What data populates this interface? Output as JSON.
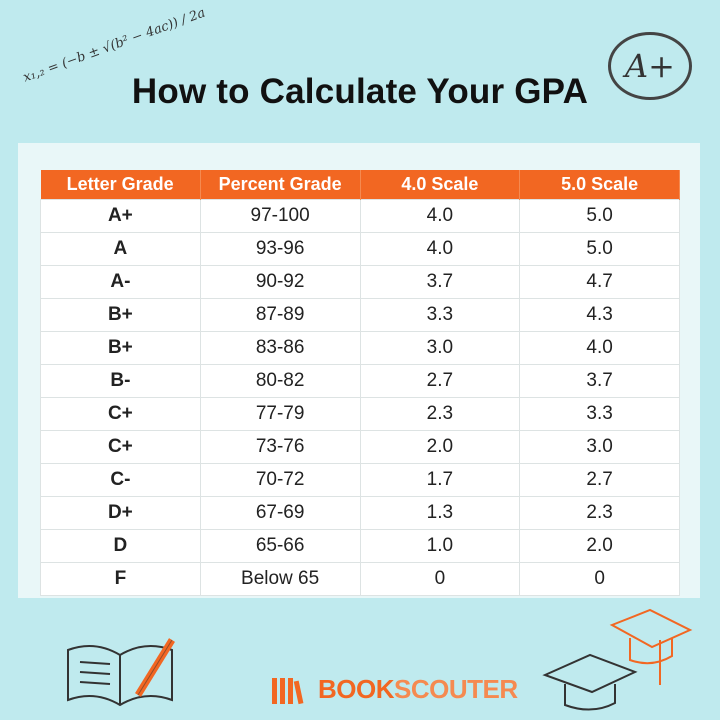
{
  "title": "How to Calculate Your GPA",
  "formula": "x₁,₂ = (−b ± √(b² − 4ac)) / 2a",
  "badge": "A+",
  "table": {
    "header": [
      "Letter Grade",
      "Percent Grade",
      "4.0 Scale",
      "5.0 Scale"
    ],
    "rows": [
      [
        "A+",
        "97-100",
        "4.0",
        "5.0"
      ],
      [
        "A",
        "93-96",
        "4.0",
        "5.0"
      ],
      [
        "A-",
        "90-92",
        "3.7",
        "4.7"
      ],
      [
        "B+",
        "87-89",
        "3.3",
        "4.3"
      ],
      [
        "B+",
        "83-86",
        "3.0",
        "4.0"
      ],
      [
        "B-",
        "80-82",
        "2.7",
        "3.7"
      ],
      [
        "C+",
        "77-79",
        "2.3",
        "3.3"
      ],
      [
        "C+",
        "73-76",
        "2.0",
        "3.0"
      ],
      [
        "C-",
        "70-72",
        "1.7",
        "2.7"
      ],
      [
        "D+",
        "67-69",
        "1.3",
        "2.3"
      ],
      [
        "D",
        "65-66",
        "1.0",
        "2.0"
      ],
      [
        "F",
        "Below 65",
        "0",
        "0"
      ]
    ]
  },
  "logo": {
    "part1": "BOOK",
    "part2": "SCOUTER"
  }
}
